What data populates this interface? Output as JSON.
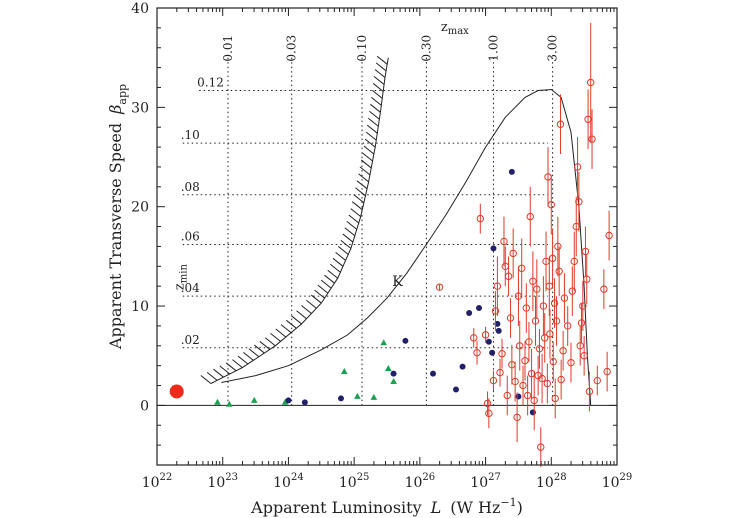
{
  "chart_data": {
    "type": "scatter",
    "title": "",
    "xlabel": "Apparent Luminosity  L  (W Hz⁻¹)",
    "xlabel_parts": {
      "prefix": "Apparent Luminosity",
      "symbol": "L",
      "units_open": "(W Hz",
      "units_exp": "−1",
      "units_close": ")"
    },
    "ylabel": "Apparent Transverse Speed  βapp",
    "ylabel_parts": {
      "prefix": "Apparent Transverse Speed",
      "symbol": "β",
      "sub": "app"
    },
    "x_scale": "log10",
    "xlim_log10": [
      22,
      29
    ],
    "ylim": [
      -6,
      40
    ],
    "x_ticks": [
      {
        "exp": 22,
        "base": "10",
        "pow": "22"
      },
      {
        "exp": 23,
        "base": "10",
        "pow": "23"
      },
      {
        "exp": 24,
        "base": "10",
        "pow": "24"
      },
      {
        "exp": 25,
        "base": "10",
        "pow": "25"
      },
      {
        "exp": 26,
        "base": "10",
        "pow": "26"
      },
      {
        "exp": 27,
        "base": "10",
        "pow": "27"
      },
      {
        "exp": 28,
        "base": "10",
        "pow": "28"
      },
      {
        "exp": 29,
        "base": "10",
        "pow": "29"
      }
    ],
    "y_ticks": [
      0,
      10,
      20,
      30,
      40
    ],
    "zmax_label": {
      "main": "z",
      "sub": "max"
    },
    "zmin_label": {
      "main": "z",
      "sub": "min"
    },
    "zmax_lines": [
      {
        "label": "0.01",
        "log10L": 23.08
      },
      {
        "label": "0.03",
        "log10L": 24.05
      },
      {
        "label": "0.10",
        "log10L": 25.12
      },
      {
        "label": "0.30",
        "log10L": 26.1
      },
      {
        "label": "1.00",
        "log10L": 27.12
      },
      {
        "label": "3.00",
        "log10L": 28.02
      }
    ],
    "zmin_lines": [
      {
        "label": ".02",
        "beta": 5.8
      },
      {
        "label": ".04",
        "beta": 11.0
      },
      {
        "label": ".06",
        "beta": 16.2
      },
      {
        "label": ".08",
        "beta": 21.2
      },
      {
        "label": ".10",
        "beta": 26.4
      },
      {
        "label": "0.12",
        "beta": 31.7
      }
    ],
    "envelope_label": "K",
    "envelope_label_at": {
      "log10L": 25.58,
      "beta": 12.0
    },
    "envelope_curve": [
      [
        22.98,
        2.3
      ],
      [
        23.5,
        3.0
      ],
      [
        24.0,
        4.0
      ],
      [
        24.5,
        5.6
      ],
      [
        24.9,
        7.1
      ],
      [
        25.2,
        8.8
      ],
      [
        25.5,
        10.8
      ],
      [
        25.8,
        13.3
      ],
      [
        26.1,
        16.2
      ],
      [
        26.4,
        19.2
      ],
      [
        26.7,
        22.5
      ],
      [
        27.0,
        26.0
      ],
      [
        27.3,
        29.0
      ],
      [
        27.6,
        31.0
      ],
      [
        27.8,
        31.7
      ],
      [
        28.0,
        31.8
      ],
      [
        28.15,
        31.0
      ],
      [
        28.3,
        27.5
      ],
      [
        28.42,
        20.0
      ],
      [
        28.5,
        12.0
      ],
      [
        28.55,
        5.0
      ],
      [
        28.6,
        0.0
      ]
    ],
    "hatched_boundary": [
      [
        22.82,
        2.2
      ],
      [
        23.3,
        3.8
      ],
      [
        23.8,
        6.0
      ],
      [
        24.2,
        8.2
      ],
      [
        24.5,
        10.3
      ],
      [
        24.75,
        12.8
      ],
      [
        24.95,
        15.8
      ],
      [
        25.1,
        19.0
      ],
      [
        25.22,
        22.5
      ],
      [
        25.32,
        26.0
      ],
      [
        25.4,
        29.5
      ],
      [
        25.47,
        33.0
      ],
      [
        25.52,
        35.0
      ]
    ],
    "reference_point": {
      "log10L": 22.3,
      "beta": 1.4,
      "color": "#ee2a1a"
    },
    "series": [
      {
        "name": "green triangles",
        "marker": "triangle",
        "color": "#1aa250",
        "points": [
          [
            22.92,
            0.3
          ],
          [
            23.1,
            0.1
          ],
          [
            23.48,
            0.5
          ],
          [
            23.95,
            0.3
          ],
          [
            24.85,
            3.4
          ],
          [
            25.05,
            0.9
          ],
          [
            25.3,
            0.8
          ],
          [
            25.45,
            6.3
          ],
          [
            25.52,
            3.7
          ],
          [
            25.6,
            2.4
          ]
        ]
      },
      {
        "name": "dark blue filled circles",
        "marker": "filled-circle",
        "color": "#22206a",
        "points": [
          [
            24.0,
            0.5
          ],
          [
            24.25,
            0.3
          ],
          [
            24.8,
            0.7
          ],
          [
            25.6,
            3.2
          ],
          [
            25.78,
            6.5
          ],
          [
            26.2,
            3.2
          ],
          [
            26.55,
            1.6
          ],
          [
            26.65,
            3.9
          ],
          [
            26.75,
            9.3
          ],
          [
            26.9,
            9.8
          ],
          [
            27.05,
            6.4
          ],
          [
            27.1,
            5.3
          ],
          [
            27.12,
            15.8
          ],
          [
            27.18,
            8.2
          ],
          [
            27.2,
            7.5
          ],
          [
            27.4,
            23.5
          ],
          [
            27.5,
            0.9
          ],
          [
            27.72,
            -0.7
          ]
        ]
      },
      {
        "name": "red open circles",
        "marker": "open-circle",
        "color": "#e03a2a",
        "errors": true,
        "points": [
          [
            26.3,
            11.9,
            0.3
          ],
          [
            26.82,
            6.8,
            1.0
          ],
          [
            26.87,
            5.3,
            1.2
          ],
          [
            26.92,
            18.8,
            1.5
          ],
          [
            27.0,
            7.1,
            0.8
          ],
          [
            27.03,
            0.2,
            1.2
          ],
          [
            27.05,
            -0.8,
            1.5
          ],
          [
            27.12,
            2.5,
            1.0
          ],
          [
            27.15,
            9.5,
            2.0
          ],
          [
            27.18,
            12.0,
            3.0
          ],
          [
            27.22,
            3.3,
            1.4
          ],
          [
            27.25,
            5.2,
            1.5
          ],
          [
            27.28,
            16.5,
            2.5
          ],
          [
            27.3,
            14.0,
            2.0
          ],
          [
            27.33,
            1.0,
            2.0
          ],
          [
            27.35,
            13.0,
            2.0
          ],
          [
            27.38,
            8.8,
            2.0
          ],
          [
            27.4,
            4.1,
            2.0
          ],
          [
            27.42,
            15.3,
            2.5
          ],
          [
            27.45,
            2.4,
            2.0
          ],
          [
            27.48,
            -1.2,
            2.5
          ],
          [
            27.5,
            11.0,
            3.0
          ],
          [
            27.52,
            6.0,
            2.5
          ],
          [
            27.55,
            13.8,
            3.0
          ],
          [
            27.57,
            2.0,
            2.0
          ],
          [
            27.6,
            4.5,
            2.0
          ],
          [
            27.62,
            9.8,
            2.5
          ],
          [
            27.64,
            1.0,
            2.0
          ],
          [
            27.66,
            6.4,
            2.0
          ],
          [
            27.68,
            19.0,
            3.0
          ],
          [
            27.7,
            3.2,
            2.5
          ],
          [
            27.72,
            12.5,
            3.0
          ],
          [
            27.74,
            0.5,
            3.0
          ],
          [
            27.76,
            8.5,
            2.5
          ],
          [
            27.78,
            11.7,
            3.0
          ],
          [
            27.8,
            3.0,
            2.0
          ],
          [
            27.82,
            5.7,
            2.0
          ],
          [
            27.84,
            -4.2,
            2.0
          ],
          [
            27.86,
            2.7,
            2.5
          ],
          [
            27.88,
            10.0,
            3.0
          ],
          [
            27.9,
            6.8,
            2.5
          ],
          [
            27.92,
            14.5,
            3.0
          ],
          [
            27.94,
            2.2,
            2.0
          ],
          [
            27.95,
            23.0,
            3.0
          ],
          [
            27.97,
            12.0,
            3.0
          ],
          [
            27.98,
            7.2,
            2.5
          ],
          [
            28.0,
            20.2,
            3.0
          ],
          [
            28.02,
            14.8,
            3.0
          ],
          [
            28.03,
            4.4,
            2.0
          ],
          [
            28.05,
            10.3,
            2.5
          ],
          [
            28.06,
            0.7,
            2.0
          ],
          [
            28.08,
            8.5,
            2.5
          ],
          [
            28.1,
            16.0,
            3.0
          ],
          [
            28.12,
            13.5,
            2.5
          ],
          [
            28.14,
            28.3,
            3.0
          ],
          [
            28.15,
            2.6,
            2.0
          ],
          [
            28.18,
            5.5,
            2.0
          ],
          [
            28.2,
            10.8,
            2.5
          ],
          [
            28.25,
            8.0,
            2.0
          ],
          [
            28.3,
            4.3,
            2.0
          ],
          [
            28.32,
            11.5,
            2.5
          ],
          [
            28.35,
            14.5,
            3.0
          ],
          [
            28.38,
            18.0,
            3.0
          ],
          [
            28.4,
            24.0,
            3.0
          ],
          [
            28.42,
            20.5,
            3.0
          ],
          [
            28.44,
            6.0,
            2.0
          ],
          [
            28.46,
            8.3,
            2.0
          ],
          [
            28.48,
            10.0,
            2.5
          ],
          [
            28.5,
            5.0,
            2.0
          ],
          [
            28.52,
            15.5,
            2.5
          ],
          [
            28.54,
            12.7,
            2.5
          ],
          [
            28.56,
            28.8,
            3.0
          ],
          [
            28.58,
            1.4,
            2.0
          ],
          [
            28.6,
            32.5,
            6.0
          ],
          [
            28.62,
            26.8,
            3.0
          ],
          [
            28.7,
            2.5,
            1.5
          ],
          [
            28.8,
            11.7,
            2.0
          ],
          [
            28.85,
            3.4,
            2.0
          ],
          [
            28.88,
            17.1,
            2.5
          ]
        ]
      }
    ]
  }
}
